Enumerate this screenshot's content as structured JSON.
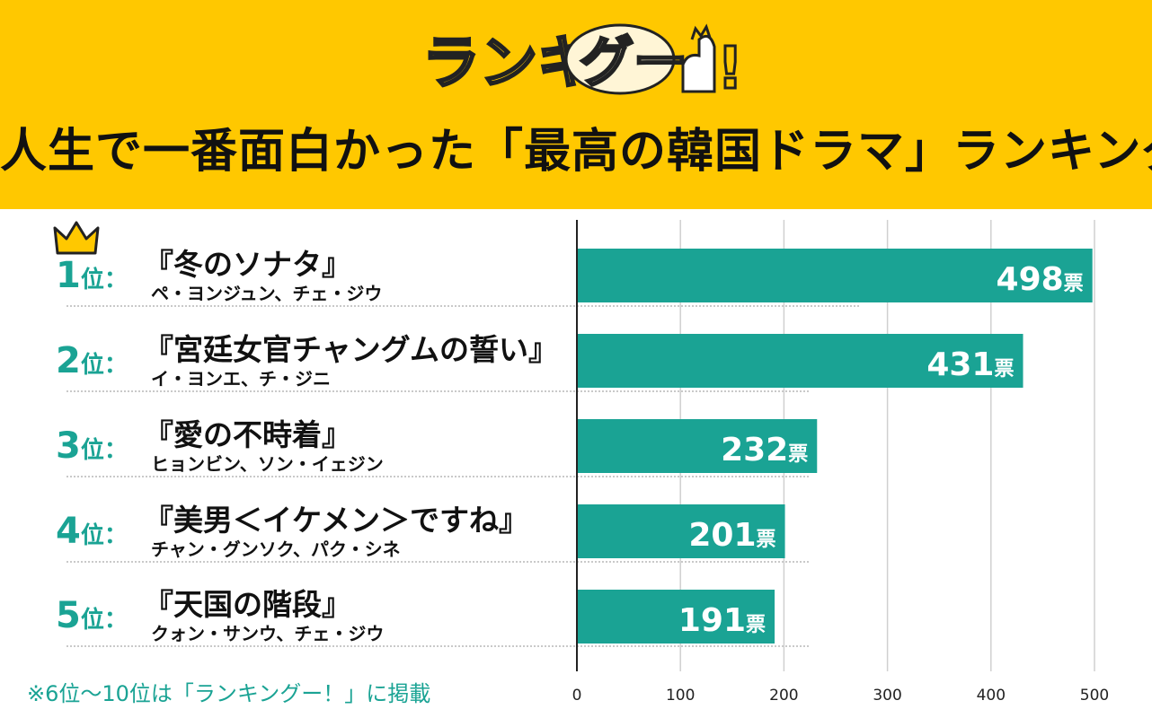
{
  "logo_text": "ランキングー!",
  "title": "人生で一番面白かった「最高の韓国ドラマ」ランキング",
  "rank_suffix": "位：",
  "vote_unit": "票",
  "footnote": "※6位〜10位は「ランキングー！」に掲載",
  "colors": {
    "header": "#ffc800",
    "bar": "#1aa394",
    "accent": "#1aa394",
    "crown": "#ffc800"
  },
  "rows": [
    {
      "rank": "1",
      "title": "『冬のソナタ』",
      "actors": "ペ・ヨンジュン、チェ・ジウ"
    },
    {
      "rank": "2",
      "title": "『宮廷女官チャングムの誓い』",
      "actors": "イ・ヨンエ、チ・ジニ"
    },
    {
      "rank": "3",
      "title": "『愛の不時着』",
      "actors": "ヒョンビン、ソン・イェジン"
    },
    {
      "rank": "4",
      "title": "『美男＜イケメン＞ですね』",
      "actors": "チャン・グンソク、パク・シネ"
    },
    {
      "rank": "5",
      "title": "『天国の階段』",
      "actors": "クォン・サンウ、チェ・ジウ"
    }
  ],
  "chart_data": {
    "type": "bar",
    "orientation": "horizontal",
    "categories": [
      "『冬のソナタ』",
      "『宮廷女官チャングムの誓い』",
      "『愛の不時着』",
      "『美男＜イケメン＞ですね』",
      "『天国の階段』"
    ],
    "values": [
      498,
      431,
      232,
      201,
      191
    ],
    "value_labels": [
      "498",
      "431",
      "232",
      "201",
      "191"
    ],
    "xlim": [
      0,
      500
    ],
    "xticks": [
      "0",
      "100",
      "200",
      "300",
      "400",
      "500"
    ],
    "grid": true
  }
}
